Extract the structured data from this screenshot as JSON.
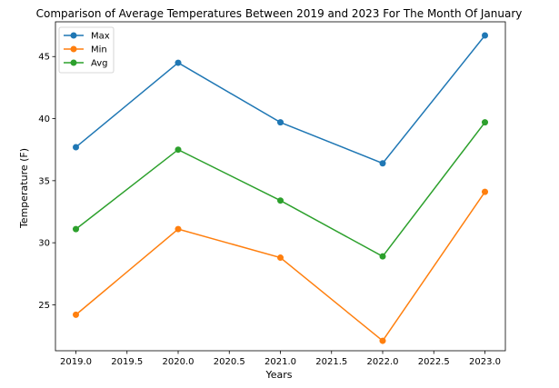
{
  "chart_data": {
    "type": "line",
    "title": "Comparison of Average Temperatures Between 2019 and 2023 For The Month Of January",
    "xlabel": "Years",
    "ylabel": "Temperature (F)",
    "x": [
      2019,
      2020,
      2021,
      2022,
      2023
    ],
    "xlim": [
      2018.8,
      2023.2
    ],
    "ylim": [
      21.3,
      47.8
    ],
    "xticks": [
      "2019.0",
      "2019.5",
      "2020.0",
      "2020.5",
      "2021.0",
      "2021.5",
      "2022.0",
      "2022.5",
      "2023.0"
    ],
    "xtick_values": [
      2019.0,
      2019.5,
      2020.0,
      2020.5,
      2021.0,
      2021.5,
      2022.0,
      2022.5,
      2023.0
    ],
    "yticks": [
      "25",
      "30",
      "35",
      "40",
      "45"
    ],
    "ytick_values": [
      25,
      30,
      35,
      40,
      45
    ],
    "grid": false,
    "legend_position": "top-left",
    "series": [
      {
        "name": "Max",
        "color": "#1f77b4",
        "values": [
          37.7,
          44.5,
          39.7,
          36.4,
          46.7
        ]
      },
      {
        "name": "Min",
        "color": "#ff7f0e",
        "values": [
          24.2,
          31.1,
          28.8,
          22.1,
          34.1
        ]
      },
      {
        "name": "Avg",
        "color": "#2ca02c",
        "values": [
          31.1,
          37.5,
          33.4,
          28.9,
          39.7
        ]
      }
    ]
  }
}
